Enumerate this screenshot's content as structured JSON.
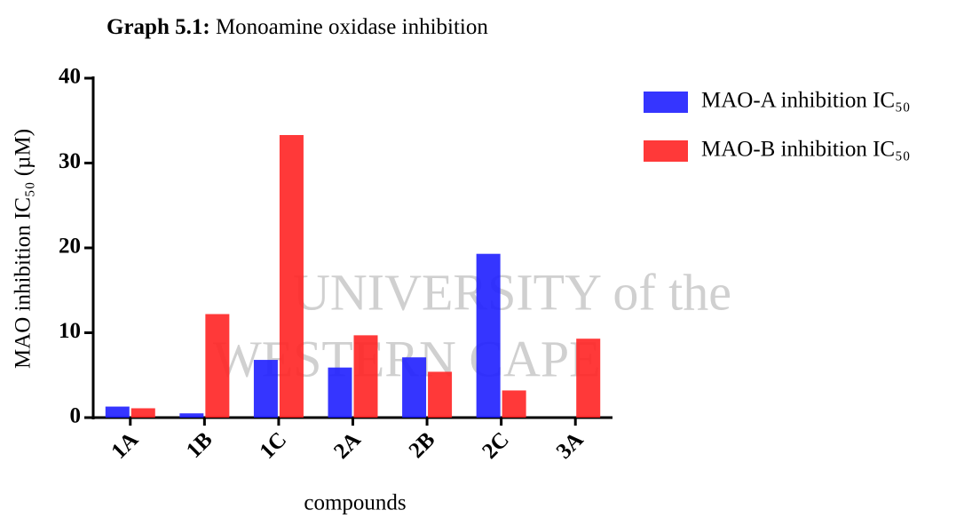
{
  "chart_data": {
    "type": "bar",
    "title_prefix": "Graph 5.1:",
    "title": "Monoamine oxidase inhibition",
    "watermark": [
      "UNIVERSITY of the",
      "WESTERN CAPE"
    ],
    "x_label": "compounds",
    "y_label": "MAO inhibition IC₅₀ (µM)",
    "categories": [
      "1A",
      "1B",
      "1C",
      "2A",
      "2B",
      "2C",
      "3A"
    ],
    "series": [
      {
        "name": "MAO-A inhibition IC₅₀",
        "color": "#1f1fff",
        "values": [
          1.3,
          0.5,
          6.8,
          5.9,
          7.1,
          19.3,
          null
        ]
      },
      {
        "name": "MAO-B inhibition IC₅₀",
        "color": "#ff2323",
        "values": [
          1.1,
          12.2,
          33.3,
          9.7,
          5.4,
          3.2,
          9.3
        ]
      }
    ],
    "ylim": [
      0,
      40
    ],
    "yticks": [
      0,
      10,
      20,
      30,
      40
    ],
    "grid": false,
    "legend": "top-right"
  }
}
